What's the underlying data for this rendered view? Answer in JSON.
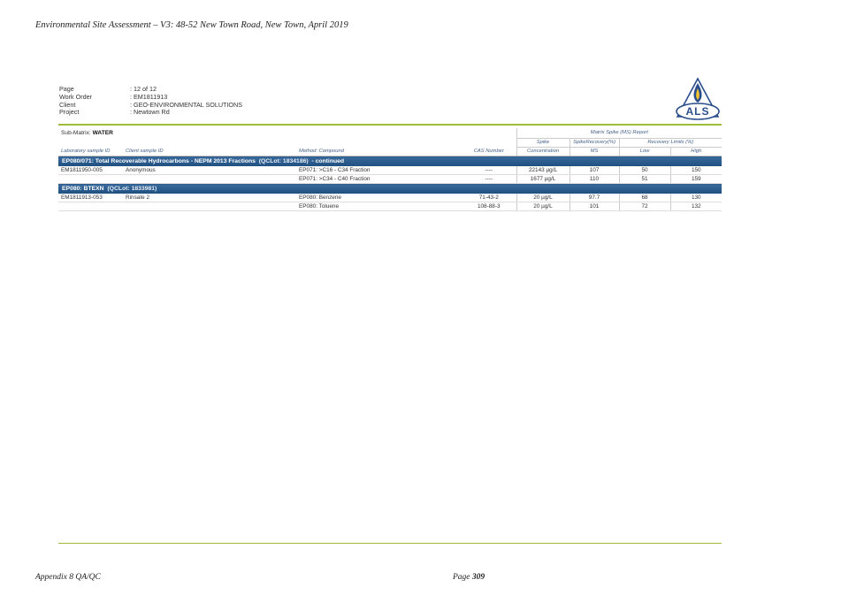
{
  "document_header": "Environmental Site Assessment – V3: 48-52 New Town Road, New Town, April 2019",
  "meta": [
    {
      "label": "Page",
      "value": "12 of 12"
    },
    {
      "label": "Work Order",
      "value": "EM1811913"
    },
    {
      "label": "Client",
      "value": "GEO-ENVIRONMENTAL SOLUTIONS"
    },
    {
      "label": "Project",
      "value": "Newtown Rd"
    }
  ],
  "logo_text": "ALS",
  "submatrix_label": "Sub-Matrix:",
  "submatrix_value": "WATER",
  "headers": {
    "report_title": "Matrix Spike (MS) Report",
    "spike": "Spike",
    "spike_recovery": "SpikeRecovery(%)",
    "recovery_limits": "Recovery Limits (%)",
    "lab_sample_id": "Laboratory sample ID",
    "client_sample_id": "Client sample ID",
    "method_compound": "Method: Compound",
    "cas_number": "CAS Number",
    "concentration": "Concentration",
    "ms": "MS",
    "low": "Low",
    "high": "High"
  },
  "groups": [
    {
      "title": "EP080/071: Total Recoverable Hydrocarbons - NEPM 2013 Fractions",
      "lot": "(QCLot: 1834186)",
      "suffix": "- continued",
      "rows": [
        {
          "lab_id": "EM1811950-005",
          "client_id": "Anonymous",
          "compound": "EP071: >C16 - C34 Fraction",
          "cas": "----",
          "conc": "22143 µg/L",
          "ms": "107",
          "low": "50",
          "high": "150"
        },
        {
          "lab_id": "",
          "client_id": "",
          "compound": "EP071: >C34 - C40 Fraction",
          "cas": "----",
          "conc": "1677 µg/L",
          "ms": "110",
          "low": "51",
          "high": "159"
        }
      ]
    },
    {
      "title": "EP080: BTEXN",
      "lot": "(QCLot: 1833981)",
      "suffix": "",
      "rows": [
        {
          "lab_id": "EM1811913-053",
          "client_id": "Rinsate 2",
          "compound": "EP080: Benzene",
          "cas": "71-43-2",
          "conc": "20 µg/L",
          "ms": "97.7",
          "low": "68",
          "high": "130"
        },
        {
          "lab_id": "",
          "client_id": "",
          "compound": "EP080: Toluene",
          "cas": "108-88-3",
          "conc": "20 µg/L",
          "ms": "101",
          "low": "72",
          "high": "132"
        }
      ]
    }
  ],
  "footer": {
    "left": "Appendix 8 QA/QC",
    "page_label": "Page",
    "page_number": "309"
  },
  "colors": {
    "accent_green": "#9fbd3a",
    "group_blue": "#1e4f80",
    "logo_blue": "#2a4e8c"
  }
}
